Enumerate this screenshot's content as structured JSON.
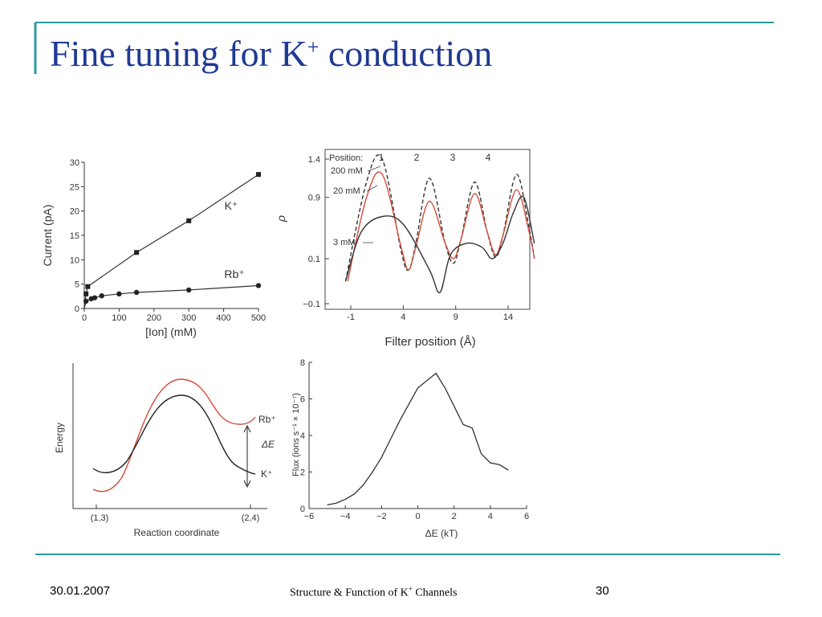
{
  "slide": {
    "title_main": "Fine tuning for K",
    "title_sup": "+",
    "title_end": " conduction",
    "footer_date": "30.01.2007",
    "footer_center_pre": "Structure & Function of  K",
    "footer_center_sup": "+",
    "footer_center_post": " Channels",
    "page_number": "30",
    "accent_color": "#2a9a9c",
    "title_color": "#1f3a93"
  },
  "chart_data": [
    {
      "type": "line",
      "xlabel": "[Ion] (mM)",
      "ylabel": "Current (pA)",
      "xlim": [
        0,
        500
      ],
      "ylim": [
        0,
        30
      ],
      "xticks": [
        0,
        100,
        200,
        300,
        400,
        500
      ],
      "yticks": [
        0,
        5,
        10,
        15,
        20,
        25,
        30
      ],
      "series": [
        {
          "name": "K⁺",
          "marker": "square",
          "points": [
            [
              0,
              0
            ],
            [
              5,
              3
            ],
            [
              10,
              4.5
            ],
            [
              150,
              11.5
            ],
            [
              300,
              18
            ],
            [
              500,
              27.5
            ]
          ]
        },
        {
          "name": "Rb⁺",
          "marker": "circle",
          "points": [
            [
              0,
              0
            ],
            [
              5,
              1.5
            ],
            [
              20,
              2
            ],
            [
              30,
              2.2
            ],
            [
              50,
              2.6
            ],
            [
              100,
              3
            ],
            [
              150,
              3.3
            ],
            [
              300,
              3.8
            ],
            [
              500,
              4.7
            ]
          ]
        }
      ]
    },
    {
      "type": "line",
      "xlabel": "Filter position (Å)",
      "ylabel": "ρ",
      "xlim": [
        -3,
        15.5
      ],
      "ylim": [
        -0.1,
        1.45
      ],
      "xticks": [
        -1,
        4,
        9,
        14
      ],
      "yticks": [
        -0.1,
        0.1,
        0.9,
        1.4
      ],
      "position_label": "Position:",
      "positions": [
        "1",
        "2",
        "3",
        "4"
      ],
      "series": [
        {
          "name": "200 mM",
          "style": "dashed",
          "points": [
            [
              -1.5,
              0
            ],
            [
              0.5,
              1.1
            ],
            [
              2,
              1.4
            ],
            [
              3.8,
              0.2
            ],
            [
              4.5,
              0.05
            ],
            [
              5.2,
              0.3
            ],
            [
              6.5,
              1.15
            ],
            [
              8,
              0.3
            ],
            [
              8.8,
              0.08
            ],
            [
              9.5,
              0.35
            ],
            [
              10.8,
              1.1
            ],
            [
              12,
              0.45
            ],
            [
              12.8,
              0.12
            ],
            [
              13.5,
              0.4
            ],
            [
              14.8,
              1.2
            ],
            [
              16,
              0.5
            ],
            [
              16.5,
              0.1
            ]
          ]
        },
        {
          "name": "20 mM",
          "color": "#d44c3c",
          "points": [
            [
              -1.3,
              0
            ],
            [
              0.5,
              0.9
            ],
            [
              2,
              1.2
            ],
            [
              3.8,
              0.25
            ],
            [
              4.5,
              0.05
            ],
            [
              5.2,
              0.25
            ],
            [
              6.5,
              0.85
            ],
            [
              8,
              0.3
            ],
            [
              8.8,
              0.1
            ],
            [
              9.5,
              0.35
            ],
            [
              10.8,
              0.95
            ],
            [
              12,
              0.45
            ],
            [
              12.8,
              0.15
            ],
            [
              13.5,
              0.4
            ],
            [
              14.8,
              1.0
            ],
            [
              16,
              0.45
            ],
            [
              16.5,
              0.1
            ]
          ]
        },
        {
          "name": "3 mM",
          "points": [
            [
              -1.5,
              0
            ],
            [
              0,
              0.45
            ],
            [
              2,
              0.65
            ],
            [
              4,
              0.55
            ],
            [
              6.5,
              0.05
            ],
            [
              7.5,
              -0.05
            ],
            [
              8.5,
              0.15
            ],
            [
              10,
              0.3
            ],
            [
              11.5,
              0.25
            ],
            [
              12.5,
              0.1
            ],
            [
              13.5,
              0.3
            ],
            [
              14.5,
              0.7
            ],
            [
              15.5,
              0.9
            ],
            [
              16.5,
              0.3
            ]
          ]
        }
      ]
    },
    {
      "type": "line",
      "xlabel": "Reaction coordinate",
      "ylabel": "Energy",
      "xticks_labels": [
        "(1,3)",
        "(2,4)"
      ],
      "annotation": "ΔE",
      "series": [
        {
          "name": "Rb⁺",
          "color": "#d44c3c"
        },
        {
          "name": "K⁺",
          "color": "#222222"
        }
      ]
    },
    {
      "type": "line",
      "xlabel": "ΔE (kT)",
      "ylabel": "Flux (ions s⁻¹ × 10⁻⁷)",
      "xlim": [
        -6,
        6
      ],
      "ylim": [
        0,
        8
      ],
      "xticks": [
        -6,
        -4,
        -2,
        0,
        2,
        4,
        6
      ],
      "yticks": [
        0,
        2,
        4,
        6,
        8
      ],
      "series": [
        {
          "points": [
            [
              -5,
              0.2
            ],
            [
              -4.5,
              0.3
            ],
            [
              -4,
              0.5
            ],
            [
              -3.5,
              0.8
            ],
            [
              -3,
              1.3
            ],
            [
              -2.5,
              2.0
            ],
            [
              -2,
              2.8
            ],
            [
              -1.5,
              3.8
            ],
            [
              -1,
              4.8
            ],
            [
              -0.5,
              5.7
            ],
            [
              0,
              6.6
            ],
            [
              0.5,
              7.0
            ],
            [
              1,
              7.4
            ],
            [
              1.5,
              6.6
            ],
            [
              2,
              5.6
            ],
            [
              2.5,
              4.6
            ],
            [
              3,
              4.4
            ],
            [
              3.5,
              3.0
            ],
            [
              4,
              2.5
            ],
            [
              4.5,
              2.4
            ],
            [
              5,
              2.1
            ]
          ]
        }
      ]
    }
  ]
}
